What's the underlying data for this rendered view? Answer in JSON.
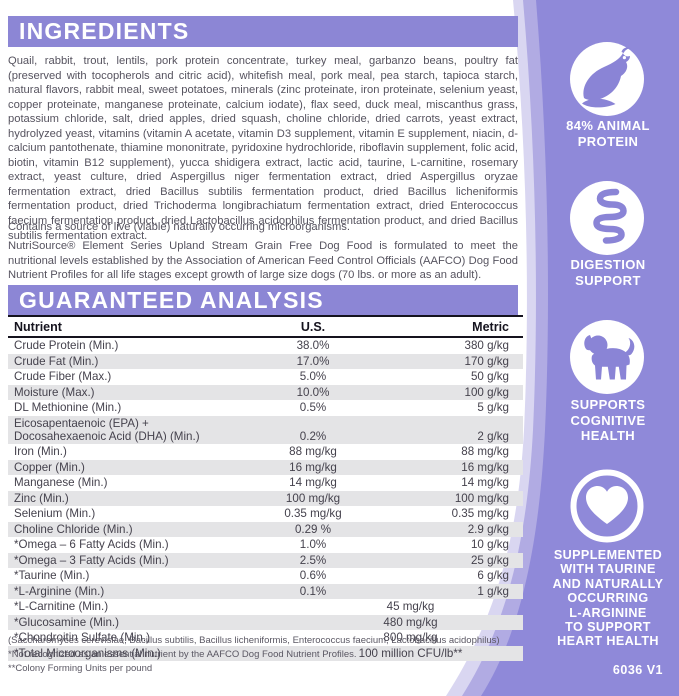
{
  "ingredients": {
    "title": "INGREDIENTS",
    "body": "Quail, rabbit, trout, lentils, pork protein concentrate, turkey meal, garbanzo beans, poultry fat (preserved with tocopherols and citric acid), whitefish meal, pork meal, pea starch, tapioca starch, natural flavors, rabbit meal, sweet potatoes, minerals (zinc proteinate, iron proteinate, selenium yeast, copper proteinate, manganese proteinate, calcium iodate), flax seed, duck meal, miscanthus grass, potassium chloride, salt, dried apples, dried squash, choline chloride, dried carrots, yeast extract, hydrolyzed yeast, vitamins (vitamin A acetate, vitamin D3 supplement, vitamin E supplement, niacin, d-calcium pantothenate, thiamine mononitrate, pyridoxine hydrochloride, riboflavin supplement, folic acid, biotin, vitamin B12 supplement), yucca shidigera extract, lactic acid, taurine, L-carnitine, rosemary extract, yeast culture, dried Aspergillus niger fermentation extract, dried Aspergillus oryzae fermentation extract, dried Bacillus subtilis fermentation product, dried Bacillus licheniformis fermentation product, dried Trichoderma longibrachiatum fermentation extract, dried Enterococcus faecium fermentation product, dried Lactobacillus acidophilus fermentation product, and dried Bacillus subtilis fermentation extract.",
    "contains_note": "Contains a source of live (viable) naturally occurring microorganisms.",
    "aafco_statement": "NutriSource® Element Series Upland Stream Grain Free Dog Food is formulated to meet the nutritional levels established by the Association of American Feed Control Officials (AAFCO) Dog Food Nutrient Profiles for all life stages except growth of large size dogs (70 lbs. or more as an adult)."
  },
  "guaranteed_analysis": {
    "title": "GUARANTEED ANALYSIS",
    "columns": [
      "Nutrient",
      "U.S.",
      "Metric"
    ],
    "rows": [
      {
        "nutrient": "Crude Protein (Min.)",
        "us": "38.0%",
        "metric": "380 g/kg"
      },
      {
        "nutrient": "Crude Fat (Min.)",
        "us": "17.0%",
        "metric": "170 g/kg"
      },
      {
        "nutrient": "Crude Fiber (Max.)",
        "us": "5.0%",
        "metric": "50 g/kg"
      },
      {
        "nutrient": "Moisture (Max.)",
        "us": "10.0%",
        "metric": "100 g/kg"
      },
      {
        "nutrient": "DL Methionine (Min.)",
        "us": "0.5%",
        "metric": "5 g/kg"
      },
      {
        "nutrient": "Eicosapentaenoic (EPA) +\nDocosahexaenoic Acid (DHA) (Min.)",
        "us": "0.2%",
        "metric": "2 g/kg"
      },
      {
        "nutrient": "Iron (Min.)",
        "us": "88 mg/kg",
        "metric": "88 mg/kg"
      },
      {
        "nutrient": "Copper (Min.)",
        "us": "16 mg/kg",
        "metric": "16 mg/kg"
      },
      {
        "nutrient": "Manganese (Min.)",
        "us": "14 mg/kg",
        "metric": "14 mg/kg"
      },
      {
        "nutrient": "Zinc (Min.)",
        "us": "100 mg/kg",
        "metric": "100 mg/kg"
      },
      {
        "nutrient": "Selenium (Min.)",
        "us": "0.35 mg/kg",
        "metric": "0.35 mg/kg"
      },
      {
        "nutrient": "Choline Chloride (Min.)",
        "us": "0.29 %",
        "metric": "2.9 g/kg"
      },
      {
        "nutrient": "*Omega – 6 Fatty Acids (Min.)",
        "us": "1.0%",
        "metric": "10 g/kg"
      },
      {
        "nutrient": "*Omega – 3 Fatty Acids (Min.)",
        "us": "2.5%",
        "metric": "25 g/kg"
      },
      {
        "nutrient": "*Taurine (Min.)",
        "us": "0.6%",
        "metric": "6 g/kg"
      },
      {
        "nutrient": "*L-Arginine (Min.)",
        "us": "0.1%",
        "metric": "1 g/kg"
      },
      {
        "nutrient": "*L-Carnitine (Min.)",
        "merged": "45 mg/kg"
      },
      {
        "nutrient": "*Glucosamine (Min.)",
        "merged": "480 mg/kg"
      },
      {
        "nutrient": "*Chondroitin Sulfate (Min.)",
        "merged": "800 mg/kg"
      },
      {
        "nutrient": "*Total Microorganisms (Min.)",
        "merged": "100 million CFU/lb**"
      }
    ],
    "footnotes": [
      "(Saccharomyces cerevisiae, Bacillus subtilis, Bacillus licheniformis, Enterococcus faecium, Lactobacillus acidophilus)",
      "*Not recognized as an essential nutrient by the AAFCO Dog Food Nutrient Profiles.",
      "**Colony Forming Units per pound"
    ]
  },
  "sidebar": {
    "badges": [
      {
        "icon": "quail-icon",
        "label": "84% ANIMAL\nPROTEIN"
      },
      {
        "icon": "intestine-icon",
        "label": "DIGESTION\nSUPPORT"
      },
      {
        "icon": "dog-icon",
        "label": "SUPPORTS\nCOGNITIVE\nHEALTH"
      },
      {
        "icon": "heart-icon",
        "label": "SUPPLEMENTED\nWITH TAURINE\nAND NATURALLY\nOCCURRING\nL-ARGININE\nTO SUPPORT\nHEART HEALTH"
      }
    ],
    "code": "6036 V1"
  },
  "colors": {
    "accent_purple": "#8c86d5",
    "sidebar_purple": "#8f89d9",
    "glyph_purple": "#8a84d6",
    "stripe_gray": "#e4e4e6"
  }
}
